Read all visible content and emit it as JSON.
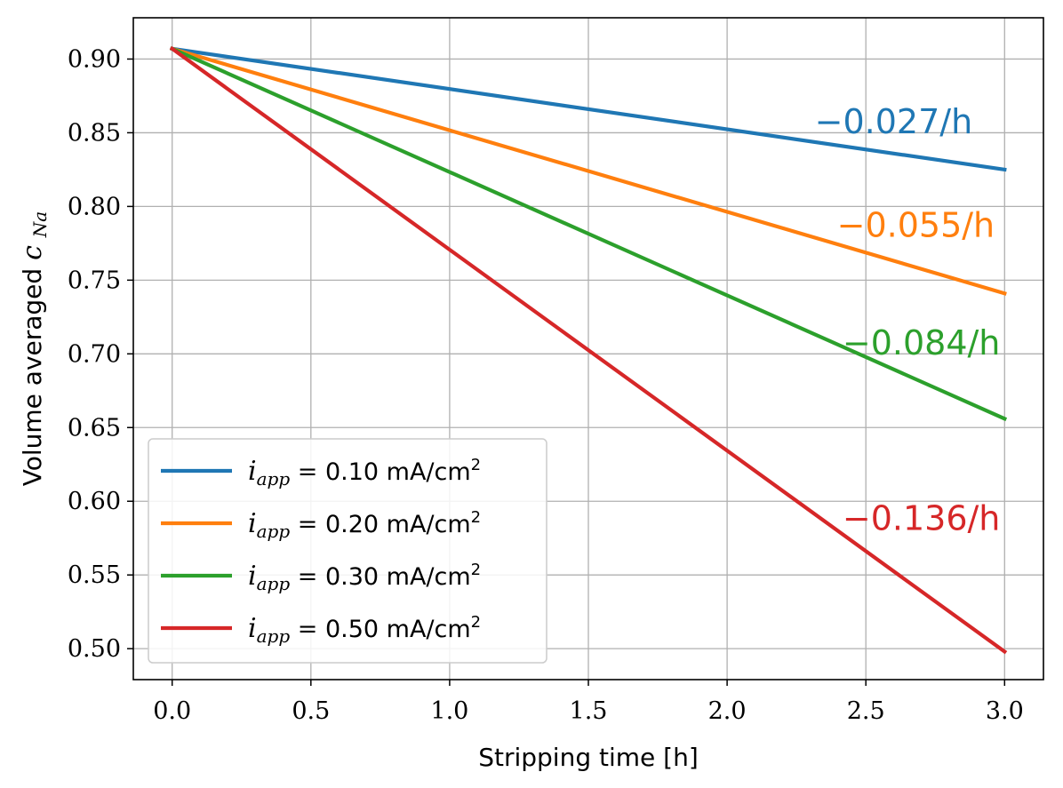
{
  "chart_data": {
    "type": "line",
    "title": "",
    "xlabel": "Stripping time [h]",
    "ylabel_prefix": "Volume averaged ",
    "ylabel_symbol": "c",
    "ylabel_subscript": "Na",
    "xlim": [
      -0.14,
      3.14
    ],
    "ylim": [
      0.479,
      0.928
    ],
    "x_ticks": [
      0.0,
      0.5,
      1.0,
      1.5,
      2.0,
      2.5,
      3.0
    ],
    "x_tick_labels": [
      "0.0",
      "0.5",
      "1.0",
      "1.5",
      "2.0",
      "2.5",
      "3.0"
    ],
    "y_ticks": [
      0.5,
      0.55,
      0.6,
      0.65,
      0.7,
      0.75,
      0.8,
      0.85,
      0.9
    ],
    "y_tick_labels": [
      "0.50",
      "0.55",
      "0.60",
      "0.65",
      "0.70",
      "0.75",
      "0.80",
      "0.85",
      "0.90"
    ],
    "grid": true,
    "legend_position": "lower-left",
    "series": [
      {
        "name": "i_app = 0.10 mA/cm2",
        "legend_symbol": "i",
        "legend_subscript": "app",
        "legend_equals": " = ",
        "legend_value": "0.10 mA/cm",
        "legend_superscript": "2",
        "color": "#1f77b4",
        "x": [
          0.0,
          3.0
        ],
        "y": [
          0.907,
          0.825
        ],
        "annotation": "−0.027/h",
        "annotation_x": 2.6,
        "annotation_y": 0.858
      },
      {
        "name": "i_app = 0.20 mA/cm2",
        "legend_symbol": "i",
        "legend_subscript": "app",
        "legend_equals": " = ",
        "legend_value": "0.20 mA/cm",
        "legend_superscript": "2",
        "color": "#ff7f0e",
        "x": [
          0.0,
          3.0
        ],
        "y": [
          0.907,
          0.741
        ],
        "annotation": "−0.055/h",
        "annotation_x": 2.68,
        "annotation_y": 0.788
      },
      {
        "name": "i_app = 0.30 mA/cm2",
        "legend_symbol": "i",
        "legend_subscript": "app",
        "legend_equals": " = ",
        "legend_value": "0.30 mA/cm",
        "legend_superscript": "2",
        "color": "#2ca02c",
        "x": [
          0.0,
          3.0
        ],
        "y": [
          0.907,
          0.656
        ],
        "annotation": "−0.084/h",
        "annotation_x": 2.7,
        "annotation_y": 0.708
      },
      {
        "name": "i_app = 0.50 mA/cm2",
        "legend_symbol": "i",
        "legend_subscript": "app",
        "legend_equals": " = ",
        "legend_value": "0.50 mA/cm",
        "legend_superscript": "2",
        "color": "#d62728",
        "x": [
          0.0,
          3.0
        ],
        "y": [
          0.907,
          0.498
        ],
        "annotation": "−0.136/h",
        "annotation_x": 2.7,
        "annotation_y": 0.589
      }
    ]
  }
}
